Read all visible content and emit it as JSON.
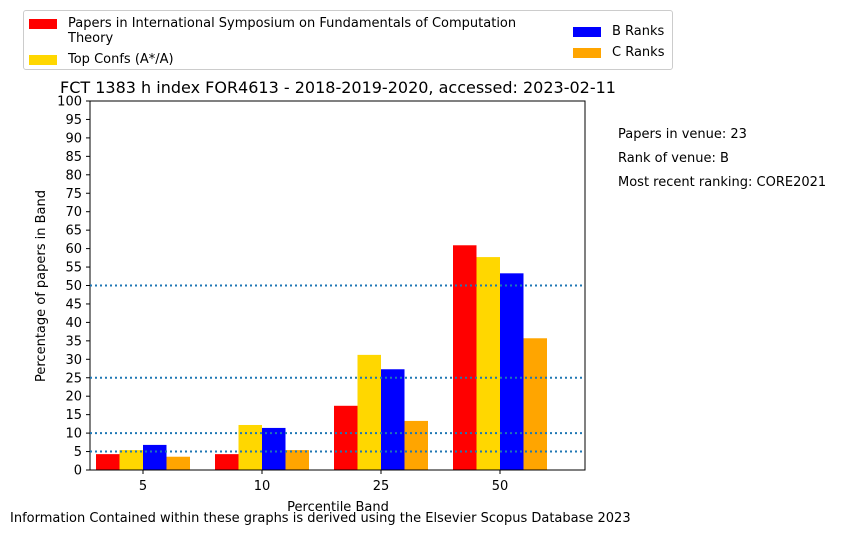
{
  "chart_data": {
    "type": "bar",
    "title": "FCT 1383 h index FOR4613 - 2018-2019-2020, accessed: 2023-02-11",
    "xlabel": "Percentile Band",
    "ylabel": "Percentage of papers in Band",
    "categories": [
      "5",
      "10",
      "25",
      "50"
    ],
    "ylim": [
      0,
      100
    ],
    "yticks": [
      "0",
      "5",
      "10",
      "15",
      "20",
      "25",
      "30",
      "35",
      "40",
      "45",
      "50",
      "55",
      "60",
      "65",
      "70",
      "75",
      "80",
      "85",
      "90",
      "95",
      "100"
    ],
    "series": [
      {
        "name": "Papers in International Symposium on Fundamentals of Computation Theory",
        "color": "#ff0000",
        "values": [
          4.3,
          4.3,
          17.4,
          60.9
        ]
      },
      {
        "name": "Top Confs (A*/A)",
        "color": "#ffd700",
        "values": [
          5.4,
          12.2,
          31.2,
          57.7
        ]
      },
      {
        "name": "B Ranks",
        "color": "#0000ff",
        "values": [
          6.8,
          11.4,
          27.3,
          53.3
        ]
      },
      {
        "name": "C Ranks",
        "color": "#ffa500",
        "values": [
          3.6,
          5.4,
          13.3,
          35.7
        ]
      }
    ],
    "reference_lines": [
      5,
      10,
      25,
      50
    ],
    "reference_line_color": "#1f77b4",
    "grid": false,
    "legend_placement": "top"
  },
  "side_notes": [
    "Papers in venue: 23",
    "Rank of venue: B",
    "Most recent ranking: CORE2021"
  ],
  "footer": "Information Contained within these graphs is derived using the Elsevier Scopus Database 2023"
}
